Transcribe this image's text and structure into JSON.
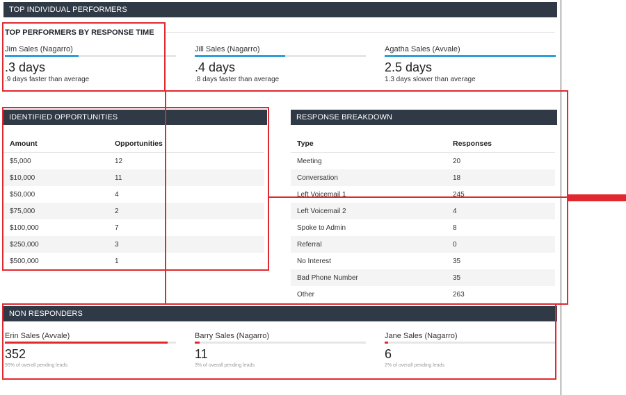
{
  "top_section": {
    "title": "TOP INDIVIDUAL PERFORMERS",
    "subtitle": "TOP PERFORMERS BY RESPONSE TIME",
    "performers": [
      {
        "name": "Jim Sales (Nagarro)",
        "value": ".3 days",
        "note": ".9 days faster than average",
        "bar_fraction": 0.43
      },
      {
        "name": "Jill Sales (Nagarro)",
        "value": ".4 days",
        "note": ".8 days faster than average",
        "bar_fraction": 0.53
      },
      {
        "name": "Agatha Sales (Avvale)",
        "value": "2.5 days",
        "note": "1.3 days slower than average",
        "bar_fraction": 1.0
      }
    ]
  },
  "opportunities": {
    "title": "IDENTIFIED OPPORTUNITIES",
    "headers": [
      "Amount",
      "Opportunities"
    ],
    "rows": [
      [
        "$5,000",
        "12"
      ],
      [
        "$10,000",
        "11"
      ],
      [
        "$50,000",
        "4"
      ],
      [
        "$75,000",
        "2"
      ],
      [
        "$100,000",
        "7"
      ],
      [
        "$250,000",
        "3"
      ],
      [
        "$500,000",
        "1"
      ]
    ]
  },
  "responses": {
    "title": "RESPONSE BREAKDOWN",
    "headers": [
      "Type",
      "Responses"
    ],
    "rows": [
      [
        "Meeting",
        "20"
      ],
      [
        "Conversation",
        "18"
      ],
      [
        "Left Voicemail 1",
        "245"
      ],
      [
        "Left Voicemail 2",
        "4"
      ],
      [
        "Spoke to Admin",
        "8"
      ],
      [
        "Referral",
        "0"
      ],
      [
        "No Interest",
        "35"
      ],
      [
        "Bad Phone Number",
        "35"
      ],
      [
        "Other",
        "263"
      ]
    ]
  },
  "non_responders": {
    "title": "NON RESPONDERS",
    "people": [
      {
        "name": "Erin Sales (Avvale)",
        "value": "352",
        "note": "95% of overall pending leads",
        "bar_fraction": 0.95
      },
      {
        "name": "Barry Sales (Nagarro)",
        "value": "11",
        "note": "3% of overall pending leads",
        "bar_fraction": 0.03
      },
      {
        "name": "Jane Sales (Nagarro)",
        "value": "6",
        "note": "2% of overall pending leads",
        "bar_fraction": 0.02
      }
    ]
  },
  "colors": {
    "header_bg": "#2f3a46",
    "blue_bar": "#2a9fd8",
    "red_bar": "#e0282e",
    "highlight": "#e0282e"
  }
}
